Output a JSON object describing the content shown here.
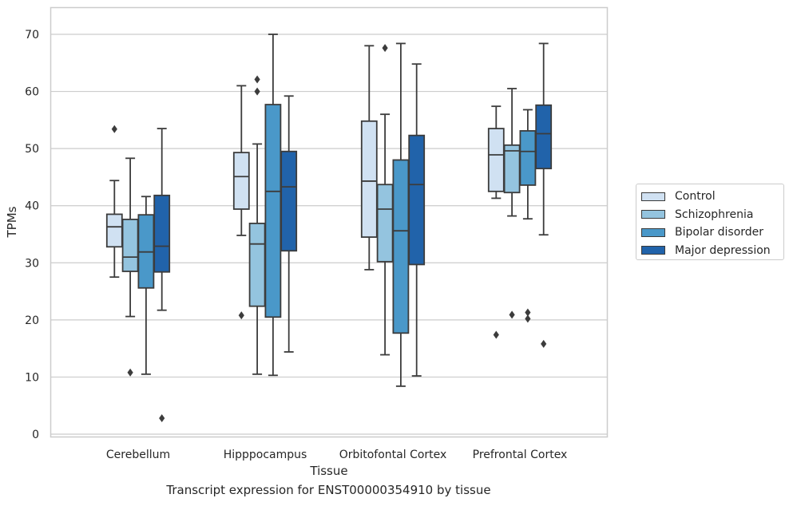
{
  "chart_data": {
    "type": "box",
    "xlabel": "Tissue",
    "ylabel": "TPMs",
    "ylim": [
      -0.5,
      75
    ],
    "yticks": [
      0,
      10,
      20,
      30,
      40,
      50,
      60,
      70
    ],
    "grid": true,
    "legend_placement": "right",
    "caption": "Transcript expression for ENST00000354910 by tissue",
    "categories": [
      "Cerebellum",
      "Hipppocampus",
      "Orbitofontal Cortex",
      "Prefrontal Cortex"
    ],
    "series": [
      {
        "name": "Control",
        "color": "#d0e1f2",
        "boxes": [
          {
            "whislo": 27.5,
            "q1": 32.8,
            "med": 36.3,
            "q3": 38.5,
            "whishi": 44.4,
            "fliers": [
              53.4
            ]
          },
          {
            "whislo": 34.8,
            "q1": 39.4,
            "med": 45.1,
            "q3": 49.3,
            "whishi": 61.0,
            "fliers": [
              20.8
            ]
          },
          {
            "whislo": 28.8,
            "q1": 34.5,
            "med": 44.3,
            "q3": 54.8,
            "whishi": 68.0,
            "fliers": []
          },
          {
            "whislo": 41.3,
            "q1": 42.5,
            "med": 48.9,
            "q3": 53.5,
            "whishi": 57.4,
            "fliers": [
              17.4
            ]
          }
        ]
      },
      {
        "name": "Schizophrenia",
        "color": "#94c4df",
        "boxes": [
          {
            "whislo": 20.6,
            "q1": 28.5,
            "med": 31.0,
            "q3": 37.6,
            "whishi": 48.3,
            "fliers": [
              10.8
            ]
          },
          {
            "whislo": 10.5,
            "q1": 22.4,
            "med": 33.3,
            "q3": 36.9,
            "whishi": 50.8,
            "fliers": [
              60.0,
              62.1
            ]
          },
          {
            "whislo": 13.9,
            "q1": 30.2,
            "med": 39.4,
            "q3": 43.7,
            "whishi": 56.0,
            "fliers": [
              67.6
            ]
          },
          {
            "whislo": 38.2,
            "q1": 42.3,
            "med": 49.6,
            "q3": 50.6,
            "whishi": 60.5,
            "fliers": [
              20.9
            ]
          }
        ]
      },
      {
        "name": "Bipolar disorder",
        "color": "#4a98c9",
        "boxes": [
          {
            "whislo": 10.5,
            "q1": 25.6,
            "med": 31.9,
            "q3": 38.4,
            "whishi": 41.6,
            "fliers": []
          },
          {
            "whislo": 10.3,
            "q1": 20.5,
            "med": 42.5,
            "q3": 57.7,
            "whishi": 70.0,
            "fliers": []
          },
          {
            "whislo": 8.4,
            "q1": 17.7,
            "med": 35.6,
            "q3": 48.0,
            "whishi": 68.4,
            "fliers": []
          },
          {
            "whislo": 37.7,
            "q1": 43.6,
            "med": 49.5,
            "q3": 53.1,
            "whishi": 56.8,
            "fliers": [
              20.2,
              21.3
            ]
          }
        ]
      },
      {
        "name": "Major depression",
        "color": "#2163aa",
        "boxes": [
          {
            "whislo": 21.7,
            "q1": 28.4,
            "med": 32.9,
            "q3": 41.8,
            "whishi": 53.5,
            "fliers": [
              2.8
            ]
          },
          {
            "whislo": 14.4,
            "q1": 32.1,
            "med": 43.3,
            "q3": 49.5,
            "whishi": 59.2,
            "fliers": []
          },
          {
            "whislo": 10.2,
            "q1": 29.7,
            "med": 43.7,
            "q3": 52.3,
            "whishi": 64.8,
            "fliers": []
          },
          {
            "whislo": 34.9,
            "q1": 46.5,
            "med": 52.6,
            "q3": 57.6,
            "whishi": 68.4,
            "fliers": [
              15.8
            ]
          }
        ]
      }
    ]
  }
}
